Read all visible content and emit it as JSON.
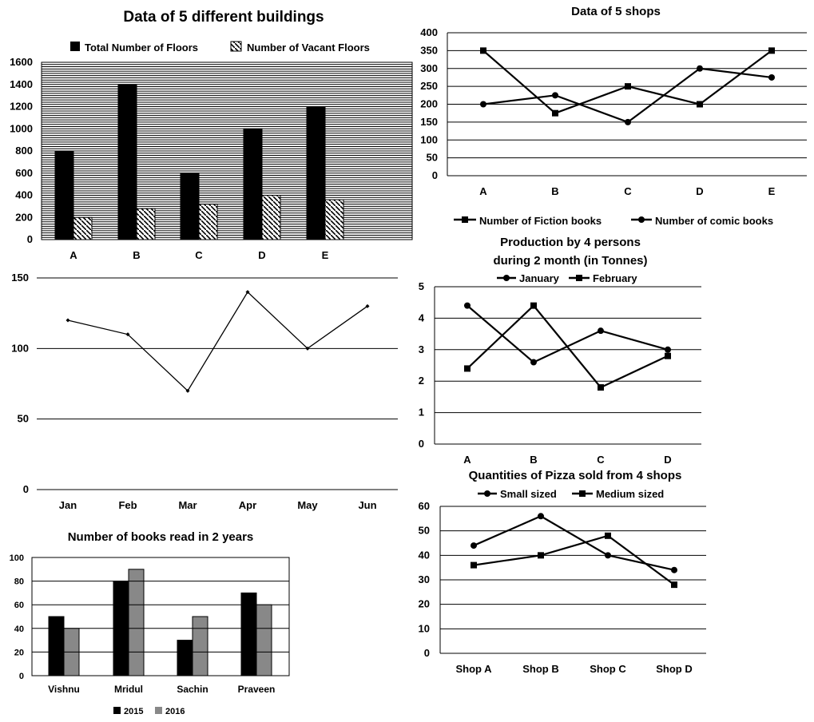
{
  "chart_data": [
    {
      "id": "buildings",
      "type": "bar",
      "title": "Data of 5 different buildings",
      "categories": [
        "A",
        "B",
        "C",
        "D",
        "E"
      ],
      "series": [
        {
          "name": "Total Number of Floors",
          "values": [
            800,
            1400,
            600,
            1000,
            1200
          ],
          "color": "#000000"
        },
        {
          "name": "Number of Vacant Floors",
          "values": [
            200,
            280,
            320,
            400,
            360
          ],
          "color": "#ffffff",
          "pattern": "diagonal-hatch"
        }
      ],
      "ylim": [
        0,
        1600
      ],
      "yticks": [
        "0",
        "200",
        "400",
        "600",
        "800",
        "1000",
        "1200",
        "1400",
        "1600"
      ],
      "grid": true,
      "legend": "top"
    },
    {
      "id": "shops",
      "type": "line",
      "title": "Data of 5 shops",
      "categories": [
        "A",
        "B",
        "C",
        "D",
        "E"
      ],
      "series": [
        {
          "name": "Number of Fiction books",
          "values": [
            350,
            175,
            250,
            200,
            350
          ],
          "marker": "square"
        },
        {
          "name": "Number of comic books",
          "values": [
            200,
            225,
            150,
            300,
            275
          ],
          "marker": "circle"
        }
      ],
      "ylim": [
        0,
        400
      ],
      "yticks": [
        "0",
        "50",
        "100",
        "150",
        "200",
        "250",
        "300",
        "350",
        "400"
      ],
      "grid": true,
      "legend": "bottom"
    },
    {
      "id": "monthly",
      "type": "line",
      "title": "",
      "categories": [
        "Jan",
        "Feb",
        "Mar",
        "Apr",
        "May",
        "Jun"
      ],
      "series": [
        {
          "values": [
            120,
            110,
            70,
            140,
            100,
            130
          ],
          "marker": "diamond"
        }
      ],
      "ylim": [
        0,
        150
      ],
      "yticks": [
        "0",
        "50",
        "100",
        "150"
      ],
      "grid": true
    },
    {
      "id": "production",
      "type": "line",
      "title_lines": [
        "Production by 4 persons",
        "during 2 month (in Tonnes)"
      ],
      "categories": [
        "A",
        "B",
        "C",
        "D"
      ],
      "series": [
        {
          "name": "January",
          "values": [
            4.4,
            2.6,
            3.6,
            3.0
          ],
          "marker": "circle"
        },
        {
          "name": "February",
          "values": [
            2.4,
            4.4,
            1.8,
            2.8
          ],
          "marker": "square"
        }
      ],
      "ylim": [
        0,
        5
      ],
      "yticks": [
        "0",
        "1",
        "2",
        "3",
        "4",
        "5"
      ],
      "grid": true,
      "legend": "top"
    },
    {
      "id": "books",
      "type": "bar",
      "title": "Number of books read in 2 years",
      "categories": [
        "Vishnu",
        "Mridul",
        "Sachin",
        "Praveen"
      ],
      "series": [
        {
          "name": "2015",
          "values": [
            50,
            80,
            30,
            70
          ],
          "color": "#000000"
        },
        {
          "name": "2016",
          "values": [
            40,
            90,
            50,
            60
          ],
          "color": "#888888"
        }
      ],
      "ylim": [
        0,
        100
      ],
      "yticks": [
        "0",
        "20",
        "40",
        "60",
        "80",
        "100"
      ],
      "grid": true,
      "legend": "bottom"
    },
    {
      "id": "pizza",
      "type": "line",
      "title": "Quantities of Pizza sold from 4 shops",
      "categories": [
        "Shop A",
        "Shop B",
        "Shop C",
        "Shop D"
      ],
      "series": [
        {
          "name": "Small sized",
          "values": [
            44,
            56,
            40,
            34
          ],
          "marker": "circle"
        },
        {
          "name": "Medium sized",
          "values": [
            36,
            40,
            48,
            28
          ],
          "marker": "square"
        }
      ],
      "ylim": [
        0,
        60
      ],
      "yticks": [
        "0",
        "10",
        "20",
        "30",
        "40",
        "50",
        "60"
      ],
      "grid": true,
      "legend": "top"
    }
  ]
}
